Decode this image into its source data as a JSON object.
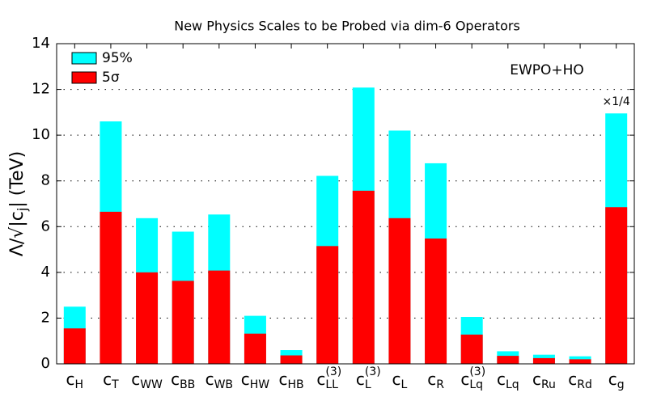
{
  "chart_data": {
    "type": "bar",
    "title": "New Physics Scales to be Probed via dim-6 Operators",
    "ylabel": {
      "main": "Λ/√|c",
      "sub": "j",
      "post": "| (TeV)"
    },
    "categories": [
      {
        "main": "c",
        "sub": "H"
      },
      {
        "main": "c",
        "sub": "T"
      },
      {
        "main": "c",
        "sub": "WW"
      },
      {
        "main": "c",
        "sub": "BB"
      },
      {
        "main": "c",
        "sub": "WB"
      },
      {
        "main": "c",
        "sub": "HW"
      },
      {
        "main": "c",
        "sub": "HB"
      },
      {
        "main": "c",
        "sub": "LL",
        "sup": "(3)"
      },
      {
        "main": "c",
        "sub": "L",
        "sup": "(3)"
      },
      {
        "main": "c",
        "sub": "L"
      },
      {
        "main": "c",
        "sub": "R"
      },
      {
        "main": "c",
        "sub": "Lq",
        "sup": "(3)"
      },
      {
        "main": "c",
        "sub": "Lq"
      },
      {
        "main": "c",
        "sub": "Ru"
      },
      {
        "main": "c",
        "sub": "Rd"
      },
      {
        "main": "c",
        "sub": "g"
      }
    ],
    "series": [
      {
        "name": "95%",
        "color": "#00ffff",
        "values": [
          2.5,
          10.6,
          6.37,
          5.78,
          6.53,
          2.1,
          0.6,
          8.22,
          12.08,
          10.2,
          8.77,
          2.05,
          0.55,
          0.4,
          0.33,
          10.95
        ]
      },
      {
        "name": "5σ",
        "color": "#ff0000",
        "values": [
          1.55,
          6.65,
          4.0,
          3.63,
          4.08,
          1.32,
          0.37,
          5.15,
          7.57,
          6.37,
          5.48,
          1.28,
          0.35,
          0.25,
          0.2,
          6.85
        ]
      }
    ],
    "ylim": [
      0,
      14
    ],
    "yticks": [
      0,
      2,
      4,
      6,
      8,
      10,
      12,
      14
    ],
    "grid": true,
    "legend": "top-left",
    "annotations": [
      {
        "text": "EWPO+HO",
        "color": "#9400d3"
      },
      {
        "text": "×1/4",
        "category": 15
      }
    ]
  }
}
